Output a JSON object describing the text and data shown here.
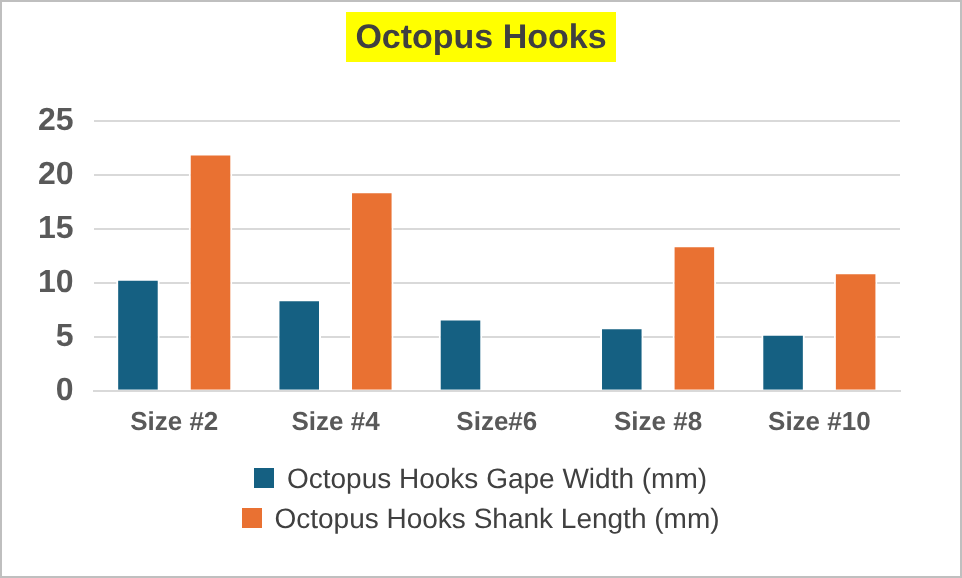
{
  "chart_data": {
    "type": "bar",
    "title": "Octopus Hooks",
    "categories": [
      "Size #2",
      "Size #4",
      "Size#6",
      "Size #8",
      "Size #10"
    ],
    "series": [
      {
        "name": "Octopus Hooks Gape Width (mm)",
        "color": "#156082",
        "values": [
          10.4,
          8.5,
          6.7,
          5.9,
          5.3
        ]
      },
      {
        "name": "Octopus Hooks Shank Length (mm)",
        "color": "#e97132",
        "values": [
          22,
          18.5,
          null,
          13.5,
          11
        ]
      }
    ],
    "ylim": [
      0,
      25
    ],
    "yticks": [
      0,
      5,
      10,
      15,
      20,
      25
    ],
    "grid": "y",
    "legend": "bottom"
  }
}
